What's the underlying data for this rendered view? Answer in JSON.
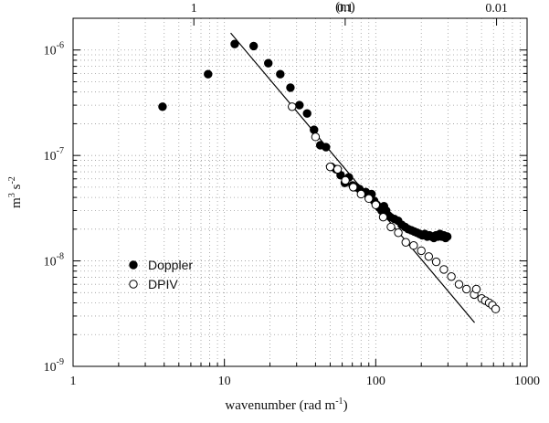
{
  "chart_data": {
    "type": "scatter",
    "title": "",
    "xlabel": "wavenumber (rad m",
    "xlabel_sup": "-1",
    "xlabel_close": ")",
    "ylabel": "m",
    "ylabel_sup1": "3",
    "ylabel_mid": " s",
    "ylabel_sup2": "-2",
    "top_axis_label": "(m)",
    "x_scale": "log",
    "y_scale": "log",
    "xlim": [
      1,
      1000
    ],
    "ylim": [
      1e-09,
      2e-06
    ],
    "grid": true,
    "legend_position": "lower-left",
    "x_ticks": [
      {
        "value": 1,
        "label": "1"
      },
      {
        "value": 10,
        "label": "10"
      },
      {
        "value": 100,
        "label": "100"
      },
      {
        "value": 1000,
        "label": "1000"
      }
    ],
    "y_ticks": [
      {
        "value": 1e-09,
        "base": "10",
        "exp": "-9"
      },
      {
        "value": 1e-08,
        "base": "10",
        "exp": "-8"
      },
      {
        "value": 1e-07,
        "base": "10",
        "exp": "-7"
      },
      {
        "value": 1e-06,
        "base": "10",
        "exp": "-6"
      }
    ],
    "top_ticks": [
      {
        "wavenumber": 6.2832,
        "label": "1"
      },
      {
        "wavenumber": 62.832,
        "label": "0.1"
      },
      {
        "wavenumber": 628.32,
        "label": "0.01"
      }
    ],
    "series": [
      {
        "name": "Doppler",
        "marker": "filled-circle",
        "color": "#000000",
        "points": [
          [
            3.9,
            2.9e-07
          ],
          [
            7.8,
            5.9e-07
          ],
          [
            11.7,
            1.14e-06
          ],
          [
            15.6,
            1.09e-06
          ],
          [
            19.5,
            7.5e-07
          ],
          [
            23.4,
            5.9e-07
          ],
          [
            27.3,
            4.4e-07
          ],
          [
            31.3,
            3e-07
          ],
          [
            35.2,
            2.5e-07
          ],
          [
            39.1,
            1.75e-07
          ],
          [
            43.0,
            1.25e-07
          ],
          [
            46.9,
            1.2e-07
          ],
          [
            50.8,
            7.8e-08
          ],
          [
            54.7,
            7.4e-08
          ],
          [
            58.6,
            6.5e-08
          ],
          [
            62.5,
            5.5e-08
          ],
          [
            66.4,
            6.2e-08
          ],
          [
            70.3,
            5.2e-08
          ],
          [
            74.2,
            5e-08
          ],
          [
            78.1,
            4.8e-08
          ],
          [
            82.0,
            4.4e-08
          ],
          [
            85.9,
            4.5e-08
          ],
          [
            89.8,
            4.1e-08
          ],
          [
            93.8,
            4.3e-08
          ],
          [
            97.7,
            3.7e-08
          ],
          [
            101.6,
            3.4e-08
          ],
          [
            105.5,
            3.2e-08
          ],
          [
            109.4,
            3e-08
          ],
          [
            113.3,
            3.3e-08
          ],
          [
            117.2,
            3e-08
          ],
          [
            121.1,
            2.7e-08
          ],
          [
            125.0,
            2.6e-08
          ],
          [
            132.8,
            2.5e-08
          ],
          [
            140.6,
            2.4e-08
          ],
          [
            148.4,
            2.2e-08
          ],
          [
            156.3,
            2.1e-08
          ],
          [
            164.1,
            2e-08
          ],
          [
            171.9,
            1.95e-08
          ],
          [
            179.7,
            1.9e-08
          ],
          [
            187.5,
            1.85e-08
          ],
          [
            195.3,
            1.8e-08
          ],
          [
            203.1,
            1.75e-08
          ],
          [
            210.9,
            1.8e-08
          ],
          [
            218.8,
            1.7e-08
          ],
          [
            226.6,
            1.75e-08
          ],
          [
            234.4,
            1.7e-08
          ],
          [
            242.2,
            1.65e-08
          ],
          [
            250.0,
            1.75e-08
          ],
          [
            257.8,
            1.7e-08
          ],
          [
            265.6,
            1.8e-08
          ],
          [
            273.4,
            1.7e-08
          ],
          [
            281.3,
            1.75e-08
          ],
          [
            289.1,
            1.65e-08
          ],
          [
            296.9,
            1.7e-08
          ]
        ]
      },
      {
        "name": "DPIV",
        "marker": "open-circle",
        "color": "#000000",
        "points": [
          [
            28.0,
            2.9e-07
          ],
          [
            40.0,
            1.5e-07
          ],
          [
            50.0,
            7.8e-08
          ],
          [
            56.0,
            7.4e-08
          ],
          [
            63.0,
            5.8e-08
          ],
          [
            71.0,
            5e-08
          ],
          [
            80.0,
            4.3e-08
          ],
          [
            90.0,
            3.9e-08
          ],
          [
            100.0,
            3.4e-08
          ],
          [
            112.0,
            2.6e-08
          ],
          [
            126.0,
            2.1e-08
          ],
          [
            141.0,
            1.85e-08
          ],
          [
            158.0,
            1.5e-08
          ],
          [
            178.0,
            1.4e-08
          ],
          [
            200.0,
            1.25e-08
          ],
          [
            224.0,
            1.1e-08
          ],
          [
            251.0,
            9.8e-09
          ],
          [
            282.0,
            8.3e-09
          ],
          [
            316.0,
            7.1e-09
          ],
          [
            355.0,
            6e-09
          ],
          [
            398.0,
            5.4e-09
          ],
          [
            447.0,
            4.8e-09
          ],
          [
            462.0,
            5.4e-09
          ],
          [
            501.0,
            4.4e-09
          ],
          [
            530.0,
            4.2e-09
          ],
          [
            562.0,
            4e-09
          ],
          [
            590.0,
            3.8e-09
          ],
          [
            620.0,
            3.5e-09
          ]
        ]
      }
    ],
    "fit_line": {
      "points": [
        [
          11.0,
          1.45e-06
        ],
        [
          450.0,
          2.6e-09
        ]
      ]
    }
  }
}
